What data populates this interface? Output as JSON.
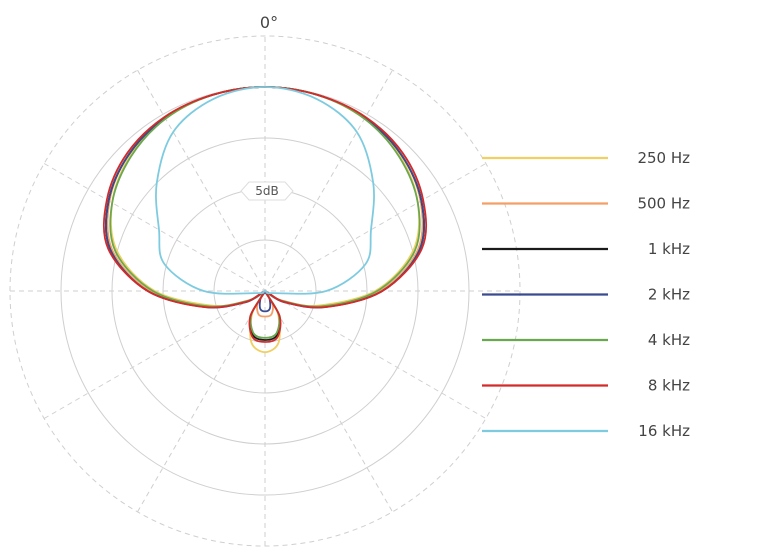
{
  "chart_data": {
    "type": "polar",
    "title": "",
    "angle_label": "0°",
    "ring_label": "5dB",
    "rmax": 25,
    "ring_step": 5,
    "spoke_step_deg": 30,
    "angles_deg": [
      0,
      15,
      30,
      45,
      60,
      75,
      90,
      105,
      120,
      135,
      150,
      165,
      180
    ],
    "legend_position": "right",
    "series": [
      {
        "name": "250 Hz",
        "color": "#f0cf63",
        "values": [
          20,
          19.9,
          19.5,
          18.7,
          17.3,
          15.0,
          10.8,
          5.5,
          2.2,
          0.3,
          2.5,
          5.2,
          6.0
        ]
      },
      {
        "name": "500 Hz",
        "color": "#f59f68",
        "values": [
          20,
          19.9,
          19.6,
          18.9,
          17.6,
          15.5,
          11.3,
          5.8,
          1.8,
          0.1,
          1.5,
          2.4,
          2.5
        ]
      },
      {
        "name": "1 kHz",
        "color": "#1a1a1a",
        "values": [
          20,
          19.9,
          19.6,
          18.9,
          17.7,
          15.7,
          11.5,
          6.0,
          2.0,
          0.3,
          2.8,
          4.5,
          4.8
        ]
      },
      {
        "name": "2 kHz",
        "color": "#3a4b8f",
        "values": [
          20,
          19.9,
          19.6,
          18.9,
          17.7,
          15.7,
          11.5,
          6.1,
          2.2,
          0.2,
          0.9,
          1.8,
          2.0
        ]
      },
      {
        "name": "4 kHz",
        "color": "#6aa84f",
        "values": [
          20,
          19.9,
          19.5,
          18.6,
          17.3,
          15.2,
          11.0,
          5.8,
          1.9,
          0.3,
          2.7,
          4.3,
          4.6
        ]
      },
      {
        "name": "8 kHz",
        "color": "#d42a2a",
        "values": [
          20,
          19.9,
          19.7,
          19.1,
          17.9,
          15.9,
          11.5,
          6.1,
          2.1,
          0.2,
          2.9,
          4.7,
          5.0
        ]
      },
      {
        "name": "16 kHz",
        "color": "#7ecbe0",
        "values": [
          20,
          19.5,
          18.0,
          15.0,
          12.0,
          10.2,
          6.0,
          0.8,
          0.2,
          0.0,
          0.0,
          0.0,
          0.0
        ]
      }
    ]
  }
}
